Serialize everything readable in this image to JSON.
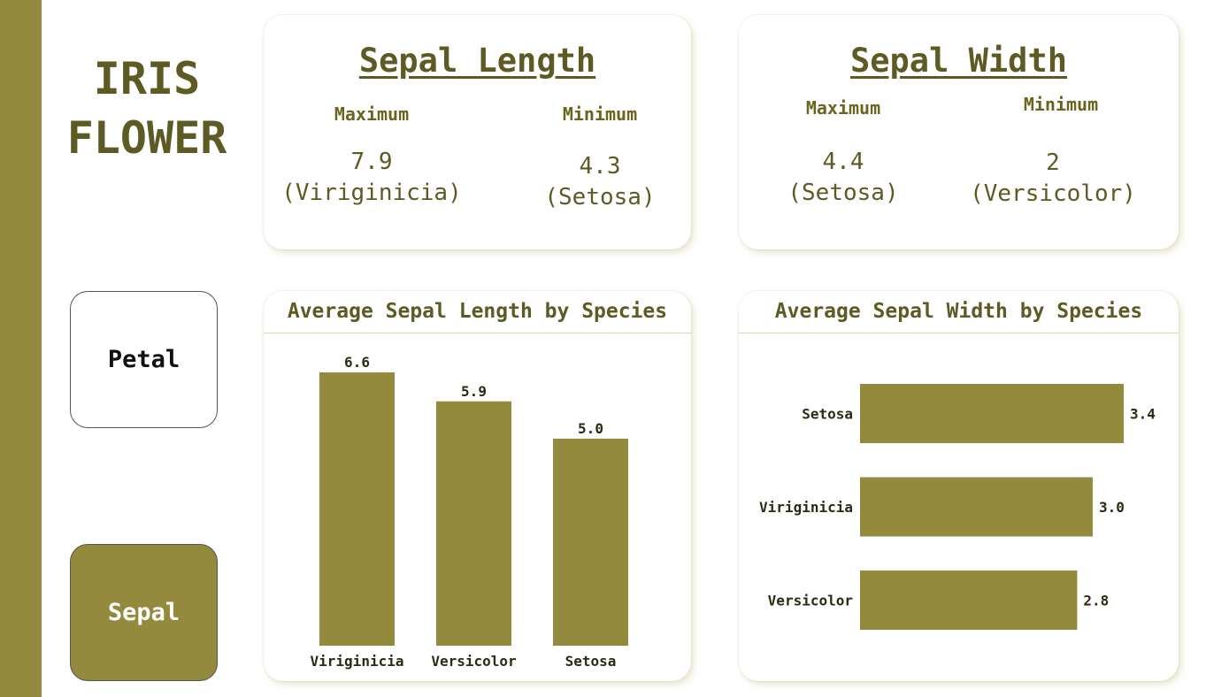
{
  "colors": {
    "accent": "#938a3d",
    "text": "#5e5a24"
  },
  "title": {
    "line1": "IRIS",
    "line2": "FLOWER"
  },
  "nav": {
    "petal_label": "Petal",
    "sepal_label": "Sepal",
    "active": "Sepal"
  },
  "sepal_length": {
    "title": "Sepal Length",
    "max_label": "Maximum",
    "max_value": "7.9",
    "max_species": "(Viriginicia)",
    "min_label": "Minimum",
    "min_value": "4.3",
    "min_species": "(Setosa)"
  },
  "sepal_width": {
    "title": "Sepal Width",
    "max_label": "Maximum",
    "max_value": "4.4",
    "max_species": "(Setosa)",
    "min_label": "Minimum",
    "min_value": "2",
    "min_species": "(Versicolor)"
  },
  "chart_data": [
    {
      "type": "bar",
      "orientation": "vertical",
      "title": "Average Sepal Length by Species",
      "categories": [
        "Viriginicia",
        "Versicolor",
        "Setosa"
      ],
      "values": [
        6.6,
        5.9,
        5.0
      ],
      "labels": [
        "6.6",
        "5.9",
        "5.0"
      ],
      "ylim": [
        0,
        6.6
      ],
      "grid": false
    },
    {
      "type": "bar",
      "orientation": "horizontal",
      "title": "Average Sepal Width by Species",
      "categories": [
        "Setosa",
        "Viriginicia",
        "Versicolor"
      ],
      "values": [
        3.4,
        3.0,
        2.8
      ],
      "labels": [
        "3.4",
        "3.0",
        "2.8"
      ],
      "xlim": [
        0,
        3.4
      ],
      "grid": false
    }
  ]
}
